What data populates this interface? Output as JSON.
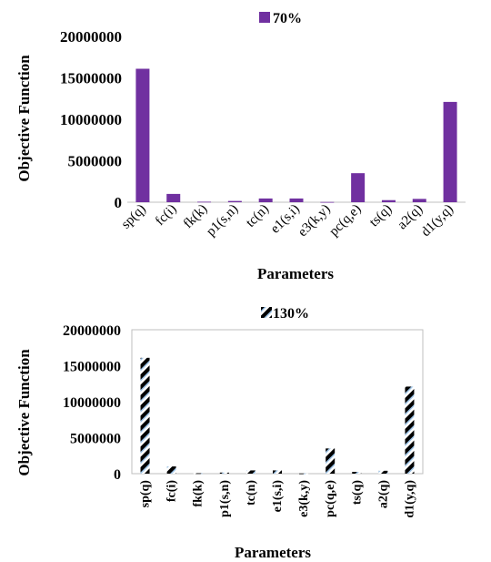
{
  "chart_data": [
    {
      "type": "bar",
      "legend": "70%",
      "legend_position": "top-center",
      "xlabel": "Parameters",
      "ylabel": "Objective Function",
      "ylim": [
        0,
        20000000
      ],
      "yticks": [
        "0",
        "5000000",
        "10000000",
        "15000000",
        "20000000"
      ],
      "categories": [
        "sp(q)",
        "fc(i)",
        "fk(k)",
        "p1(s,n)",
        "tc(n)",
        "e1(s,i)",
        "e3(k,y)",
        "pc(q,e)",
        "ts(q)",
        "a2(q)",
        "d1(y,q)"
      ],
      "values": [
        16100000,
        1000000,
        60000,
        150000,
        450000,
        450000,
        30000,
        3500000,
        250000,
        400000,
        12100000
      ],
      "grid": false,
      "color": "#7030a0"
    },
    {
      "type": "bar",
      "legend": "130%",
      "legend_position": "top-center",
      "xlabel": "Parameters",
      "ylabel": "Objective Function",
      "ylim": [
        0,
        20000000
      ],
      "yticks": [
        "0",
        "5000000",
        "10000000",
        "15000000",
        "20000000"
      ],
      "categories": [
        "sp(q)",
        "fc(i)",
        "fk(k)",
        "p1(s,n)",
        "tc(n)",
        "e1(s,i)",
        "e3(k,y)",
        "pc(q,e)",
        "ts(q)",
        "a2(q)",
        "d1(y,q)"
      ],
      "values": [
        16100000,
        1000000,
        60000,
        150000,
        450000,
        450000,
        30000,
        3500000,
        250000,
        400000,
        12100000
      ],
      "grid": false,
      "pattern": "hatched",
      "color": "#9dc3e6"
    }
  ]
}
